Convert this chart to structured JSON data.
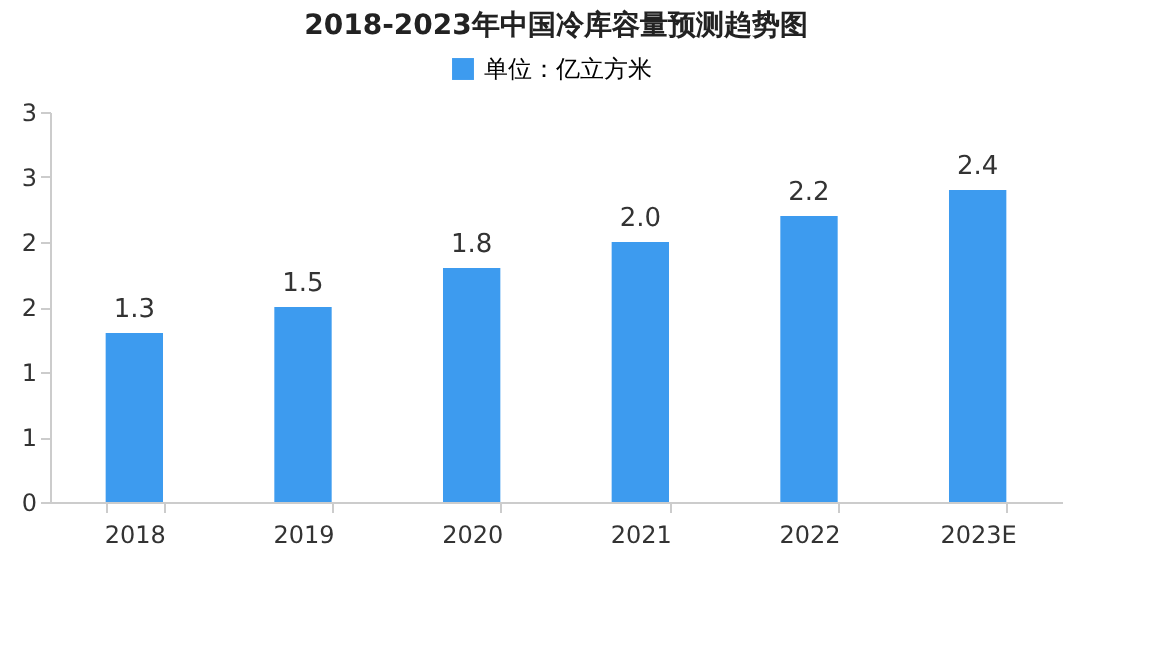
{
  "chart_data": {
    "type": "bar",
    "title": "2018-2023年中国冷库容量预测趋势图",
    "categories": [
      "2018",
      "2019",
      "2020",
      "2021",
      "2022",
      "2023E"
    ],
    "series": [
      {
        "name": "单位：亿立方米",
        "color": "#3d9bef",
        "values": [
          1.3,
          1.5,
          1.8,
          2.0,
          2.2,
          2.4
        ]
      }
    ],
    "value_labels": [
      "1.3",
      "1.5",
      "1.8",
      "2.0",
      "2.2",
      "2.4"
    ],
    "ylim": [
      0,
      3
    ],
    "yticks": [
      0,
      {
        "value": 0.5,
        "label": "1"
      },
      1,
      {
        "value": 1.5,
        "label": "2"
      },
      2,
      {
        "value": 2.5,
        "label": "3"
      },
      3
    ],
    "legend": "top",
    "grid": false
  }
}
